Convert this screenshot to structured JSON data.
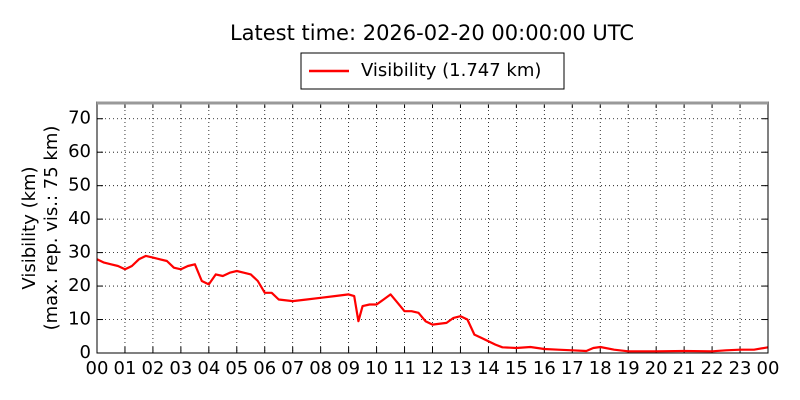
{
  "chart_data": {
    "type": "line",
    "title": "Latest time: 2026-02-20 00:00:00 UTC",
    "ylabel": [
      "Visibility (km)",
      "(max. rep. vis.: 75 km)"
    ],
    "x": [
      0,
      0.25,
      0.5,
      0.75,
      1,
      1.25,
      1.5,
      1.75,
      2,
      2.25,
      2.5,
      2.75,
      3,
      3.25,
      3.5,
      3.75,
      4,
      4.25,
      4.5,
      4.75,
      5,
      5.25,
      5.5,
      5.75,
      6,
      6.25,
      6.5,
      7,
      7.5,
      8,
      8.5,
      9,
      9.2,
      9.35,
      9.5,
      9.75,
      10,
      10.25,
      10.5,
      10.75,
      11,
      11.25,
      11.5,
      11.75,
      12,
      12.5,
      12.75,
      13,
      13.25,
      13.5,
      13.75,
      14,
      14.25,
      14.5,
      15,
      15.5,
      16,
      16.5,
      17,
      17.5,
      17.75,
      18,
      18.5,
      19,
      20,
      21,
      22,
      22.5,
      23,
      23.5,
      24
    ],
    "series": [
      {
        "name": "Visibility (1.747 km)",
        "color": "#ff0000",
        "values": [
          28,
          27,
          26.5,
          26,
          25,
          26,
          28,
          29,
          28.5,
          28,
          27.5,
          25.5,
          25,
          26,
          26.5,
          21.5,
          20.5,
          23.5,
          23,
          24,
          24.5,
          24,
          23.5,
          21.5,
          18,
          18,
          16,
          15.5,
          16,
          16.5,
          17,
          17.5,
          17,
          9.5,
          14,
          14.5,
          14.5,
          16,
          17.5,
          15,
          12.5,
          12.5,
          12,
          9.5,
          8.5,
          9,
          10.5,
          11,
          10,
          5.5,
          4.5,
          3.5,
          2.5,
          1.7,
          1.5,
          1.8,
          1.2,
          1.0,
          0.8,
          0.6,
          1.5,
          1.8,
          1.0,
          0.5,
          0.5,
          0.6,
          0.5,
          0.8,
          1.0,
          1.0,
          1.7
        ]
      }
    ],
    "xlim": [
      0,
      24
    ],
    "xticks": [
      {
        "value": 0,
        "label": "00"
      },
      {
        "value": 1,
        "label": "01"
      },
      {
        "value": 2,
        "label": "02"
      },
      {
        "value": 3,
        "label": "03"
      },
      {
        "value": 4,
        "label": "04"
      },
      {
        "value": 5,
        "label": "05"
      },
      {
        "value": 6,
        "label": "06"
      },
      {
        "value": 7,
        "label": "07"
      },
      {
        "value": 8,
        "label": "08"
      },
      {
        "value": 9,
        "label": "09"
      },
      {
        "value": 10,
        "label": "10"
      },
      {
        "value": 11,
        "label": "11"
      },
      {
        "value": 12,
        "label": "12"
      },
      {
        "value": 13,
        "label": "13"
      },
      {
        "value": 14,
        "label": "14"
      },
      {
        "value": 15,
        "label": "15"
      },
      {
        "value": 16,
        "label": "16"
      },
      {
        "value": 17,
        "label": "17"
      },
      {
        "value": 18,
        "label": "18"
      },
      {
        "value": 19,
        "label": "19"
      },
      {
        "value": 20,
        "label": "20"
      },
      {
        "value": 21,
        "label": "21"
      },
      {
        "value": 22,
        "label": "22"
      },
      {
        "value": 23,
        "label": "23"
      },
      {
        "value": 24,
        "label": "00"
      }
    ],
    "ylim": [
      0,
      75
    ],
    "yticks": [
      0,
      10,
      20,
      30,
      40,
      50,
      60,
      70
    ],
    "grid": true,
    "legend": "upper center"
  }
}
